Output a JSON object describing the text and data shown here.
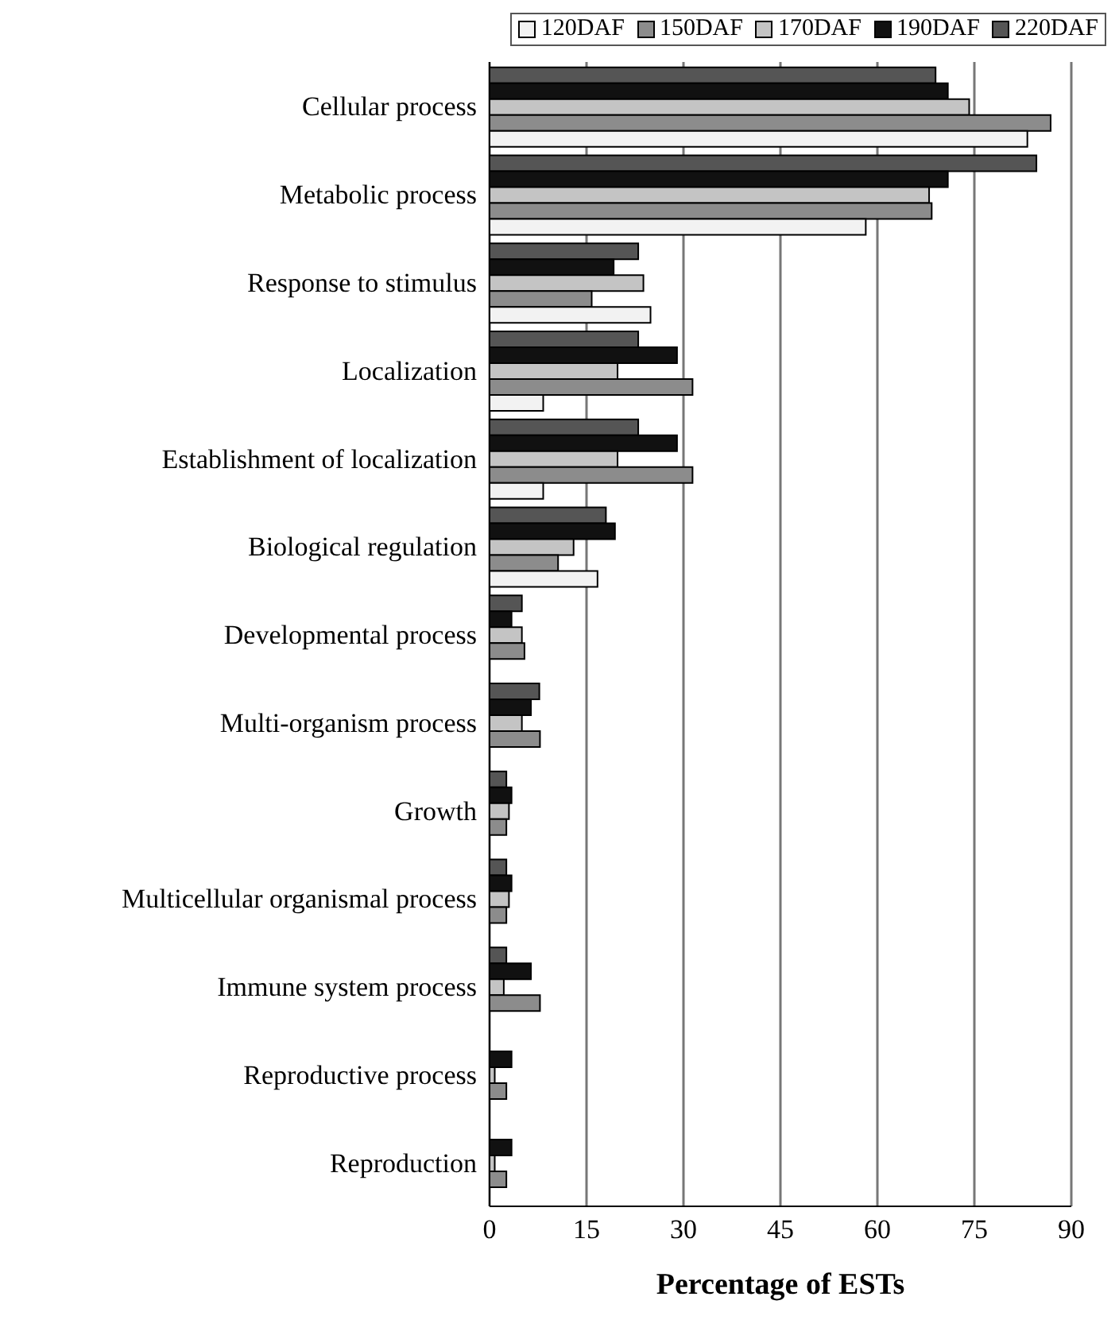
{
  "chart_data": {
    "type": "bar",
    "orientation": "horizontal",
    "xlabel": "Percentage of ESTs",
    "categories": [
      "Cellular process",
      "Metabolic process",
      "Response to stimulus",
      "Localization",
      "Establishment of localization",
      "Biological regulation",
      "Developmental process",
      "Multi-organism process",
      "Growth",
      "Multicellular organismal process",
      "Immune system process",
      "Reproductive process",
      "Reproduction"
    ],
    "series": [
      {
        "name": "120DAF",
        "color": "#f2f2f2",
        "values": [
          83.2,
          58.2,
          24.9,
          8.3,
          8.3,
          16.7,
          0,
          0,
          0,
          0,
          0,
          0,
          0
        ]
      },
      {
        "name": "150DAF",
        "color": "#8c8c8c",
        "values": [
          86.8,
          68.4,
          15.8,
          31.4,
          31.4,
          10.6,
          5.4,
          7.8,
          2.6,
          2.6,
          7.8,
          2.6,
          2.6
        ]
      },
      {
        "name": "170DAF",
        "color": "#c4c4c4",
        "values": [
          74.2,
          68.0,
          23.8,
          19.8,
          19.8,
          13.0,
          5.0,
          5.0,
          3.0,
          3.0,
          2.2,
          0.8,
          0.8
        ]
      },
      {
        "name": "190DAF",
        "color": "#111111",
        "values": [
          70.9,
          70.9,
          19.2,
          29.0,
          29.0,
          19.4,
          3.4,
          6.4,
          3.4,
          3.4,
          6.4,
          3.4,
          3.4
        ]
      },
      {
        "name": "220DAF",
        "color": "#555555",
        "values": [
          69.0,
          84.6,
          23.0,
          23.0,
          23.0,
          18.0,
          5.0,
          7.7,
          2.6,
          2.6,
          2.6,
          0,
          0
        ]
      }
    ],
    "xlim": [
      0,
      90
    ],
    "xticks": [
      0,
      15,
      30,
      45,
      60,
      75,
      90
    ],
    "grid": "x",
    "legend": "top right"
  }
}
